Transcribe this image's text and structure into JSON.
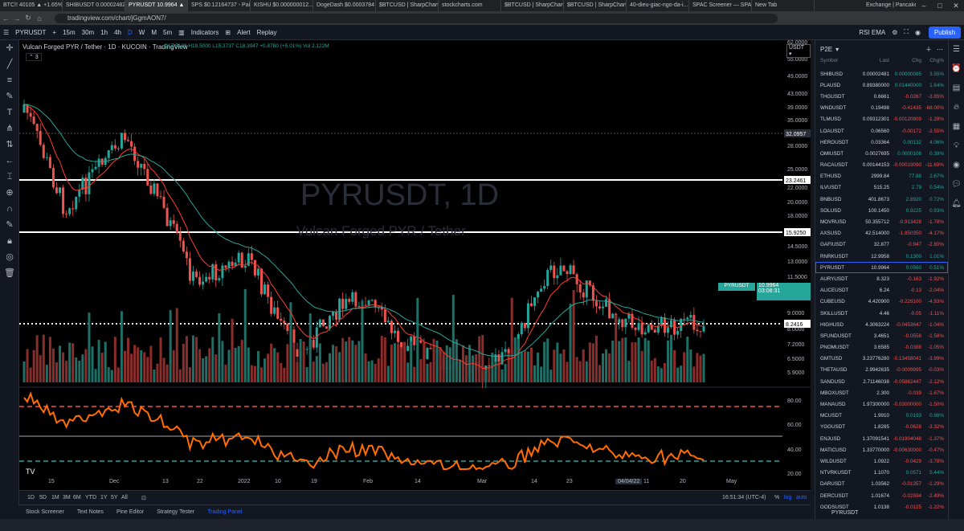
{
  "browser": {
    "tabs": [
      "BTC!! 40105 ▲ +1.65%",
      "SHIBUSDT 0.00002482 ...",
      "PYRUSDT 10.9964 ▲",
      "SPS $0.12164737 - Pair",
      "KISHU $0.000000012...",
      "DogeDash $0.0003784",
      "$BTCUSD | SharpChart",
      "stockcharts.com",
      "$BTCUSD | SharpChart",
      "$BTCUSD | SharpChart",
      "40-dieu-giac-ngo-da-i...",
      "SPAC Screener — SPAC",
      "New Tab",
      "Exchange | PancakeSw..."
    ],
    "url": "tradingview.com/chart/jGgmAON7/"
  },
  "toolbar": {
    "symbol": "PYRUSDT",
    "intervals": [
      "15m",
      "30m",
      "1h",
      "4h",
      "D",
      "W",
      "M",
      "5m"
    ],
    "indicators": "Indicators",
    "alert": "Alert",
    "replay": "Replay",
    "layout": "RSI EMA",
    "publish": "Publish"
  },
  "chart": {
    "symbol_line": "Vulcan Forged PYR / Tether · 1D · KUCOIN · TradingView",
    "ohlc": "O17.5139 H19.5000 L15.3737 C18.3947 +0.8780 (+5.01%) Vol 2.122M",
    "sub_count": "3",
    "watermark_title": "PYRUSDT, 1D",
    "watermark_sub": "Vulcan Forged PYR / Tether",
    "currency": "USDT",
    "last_price": "10.9964",
    "countdown": "03:08:31",
    "level_labels": [
      "32.0957",
      "23.2461",
      "15.9250",
      "8.2416"
    ],
    "price_ticks": [
      "62.0000",
      "55.0000",
      "49.0000",
      "43.0000",
      "39.0000",
      "35.0000",
      "31.0000",
      "28.0000",
      "25.0000",
      "22.0000",
      "20.0000",
      "18.0000",
      "16.0000",
      "14.5000",
      "13.0000",
      "11.5000",
      "10.0000",
      "9.0000",
      "8.0000",
      "7.2000",
      "6.5000",
      "5.9000"
    ],
    "rsi_ticks": [
      "80.00",
      "60.00",
      "40.00",
      "20.00"
    ],
    "dates": [
      "15",
      "Dec",
      "13",
      "22",
      "2022",
      "10",
      "19",
      "Feb",
      "14",
      "Mar",
      "14",
      "23",
      "04/04/22",
      "11",
      "20",
      "May"
    ],
    "time": "16:51:34 (UTC-4)",
    "pct": "%",
    "log": "log",
    "auto": "auto"
  },
  "timeframes": [
    "1D",
    "5D",
    "1M",
    "3M",
    "6M",
    "YTD",
    "1Y",
    "5Y",
    "All"
  ],
  "bottom_tabs": [
    "Stock Screener",
    "Text Notes",
    "Pine Editor",
    "Strategy Tester",
    "Trading Panel"
  ],
  "watchlist": {
    "title": "P2E",
    "columns": [
      "Symbol",
      "Last",
      "Chg",
      "Chg%"
    ],
    "rows": [
      {
        "s": "SHIBUSD",
        "l": "0.00002481",
        "c": "0.00000085",
        "p": "3.55%",
        "d": "pos"
      },
      {
        "s": "PLAUSD",
        "l": "0.89380000",
        "c": "0.01440000",
        "p": "1.64%",
        "d": "pos"
      },
      {
        "s": "THGUSDT",
        "l": "0.6661",
        "c": "-0.0267",
        "p": "-3.85%",
        "d": "neg"
      },
      {
        "s": "WNDUSDT",
        "l": "0.19498",
        "c": "-0.41435",
        "p": "-68.00%",
        "d": "neg"
      },
      {
        "s": "TLMUSD",
        "l": "0.09312301",
        "c": "-0.00120809",
        "p": "-1.28%",
        "d": "neg"
      },
      {
        "s": "LOAUSDT",
        "l": "0.06560",
        "c": "-0.00172",
        "p": "-2.55%",
        "d": "neg"
      },
      {
        "s": "HEROUSDT",
        "l": "0.03364",
        "c": "0.00132",
        "p": "4.06%",
        "d": "pos"
      },
      {
        "s": "OMIUSDT",
        "l": "0.0027695",
        "c": "0.0000106",
        "p": "0.38%",
        "d": "pos"
      },
      {
        "s": "RACAUSDT",
        "l": "0.00144153",
        "c": "-0.00019090",
        "p": "-11.69%",
        "d": "neg"
      },
      {
        "s": "ETHUSD",
        "l": "2999.84",
        "c": "77.88",
        "p": "2.67%",
        "d": "pos"
      },
      {
        "s": "ILVUSDT",
        "l": "515.25",
        "c": "2.79",
        "p": "0.54%",
        "d": "pos"
      },
      {
        "s": "BNBUSD",
        "l": "401.8673",
        "c": "2.8920",
        "p": "0.72%",
        "d": "pos"
      },
      {
        "s": "SOLUSD",
        "l": "100.1450",
        "c": "0.9225",
        "p": "0.93%",
        "d": "pos"
      },
      {
        "s": "MOVRUSD",
        "l": "50.355712",
        "c": "-0.913428",
        "p": "-1.78%",
        "d": "neg"
      },
      {
        "s": "AXSUSD",
        "l": "42.514000",
        "c": "-1.850350",
        "p": "-4.17%",
        "d": "neg"
      },
      {
        "s": "GAFIUSDT",
        "l": "32.877",
        "c": "-0.947",
        "p": "-2.80%",
        "d": "neg"
      },
      {
        "s": "RNRKUSDT",
        "l": "12.9958",
        "c": "0.1300",
        "p": "1.01%",
        "d": "pos"
      },
      {
        "s": "PYRUSDT",
        "l": "10.9964",
        "c": "0.0560",
        "p": "0.51%",
        "d": "pos"
      },
      {
        "s": "AURYUSDT",
        "l": "8.323",
        "c": "-0.163",
        "p": "-1.92%",
        "d": "neg"
      },
      {
        "s": "ALICEUSDT",
        "l": "6.24",
        "c": "-0.13",
        "p": "-2.04%",
        "d": "neg"
      },
      {
        "s": "CUBEUSD",
        "l": "4.420900",
        "c": "-0.229100",
        "p": "-4.93%",
        "d": "neg"
      },
      {
        "s": "SKILLUSDT",
        "l": "4.46",
        "c": "-0.05",
        "p": "-1.11%",
        "d": "neg"
      },
      {
        "s": "HIGHUSD",
        "l": "4.3063224",
        "c": "-0.0453647",
        "p": "-1.04%",
        "d": "neg"
      },
      {
        "s": "SFUNDUSDT",
        "l": "3.4651",
        "c": "-0.0556",
        "p": "-1.58%",
        "d": "neg"
      },
      {
        "s": "PNOMUSDT",
        "l": "3.6585",
        "c": "-0.0388",
        "p": "-1.05%",
        "d": "neg"
      },
      {
        "s": "GMTUSD",
        "l": "3.23776280",
        "c": "-0.13458041",
        "p": "-3.99%",
        "d": "neg"
      },
      {
        "s": "THETAUSD",
        "l": "2.9942635",
        "c": "-0.0009995",
        "p": "-0.03%",
        "d": "neg"
      },
      {
        "s": "SANDUSD",
        "l": "2.71146038",
        "c": "-0.05862447",
        "p": "-2.12%",
        "d": "neg"
      },
      {
        "s": "MBOXUSDT",
        "l": "2.300",
        "c": "-0.039",
        "p": "-1.67%",
        "d": "neg"
      },
      {
        "s": "MANAUSD",
        "l": "1.97300000",
        "c": "-0.03000000",
        "p": "-1.50%",
        "d": "neg"
      },
      {
        "s": "MCUSDT",
        "l": "1.9910",
        "c": "0.0193",
        "p": "0.98%",
        "d": "pos"
      },
      {
        "s": "YGGUSDT",
        "l": "1.8285",
        "c": "-0.0628",
        "p": "-3.32%",
        "d": "neg"
      },
      {
        "s": "ENJUSD",
        "l": "1.37091541",
        "c": "-0.01904048",
        "p": "-1.37%",
        "d": "neg"
      },
      {
        "s": "MATICUSD",
        "l": "1.33770000",
        "c": "-0.00630000",
        "p": "-0.47%",
        "d": "neg"
      },
      {
        "s": "WILDUSDT",
        "l": "1.0922",
        "c": "-0.0429",
        "p": "-3.78%",
        "d": "neg"
      },
      {
        "s": "NTVRKUSDT",
        "l": "1.1070",
        "c": "0.0571",
        "p": "5.44%",
        "d": "pos"
      },
      {
        "s": "DARUSDT",
        "l": "1.03562",
        "c": "-0.01357",
        "p": "-1.29%",
        "d": "neg"
      },
      {
        "s": "DERCUSDT",
        "l": "1.01674",
        "c": "-0.02594",
        "p": "-2.49%",
        "d": "neg"
      },
      {
        "s": "GODSUSDT",
        "l": "1.0138",
        "c": "-0.0125",
        "p": "-1.22%",
        "d": "neg"
      }
    ],
    "footer": "PYRUSDT"
  },
  "colors": {
    "up": "#26a69a",
    "down": "#ef5350",
    "ema_fast": "#ff3b30",
    "ema_slow": "#26a69a",
    "rsi": "#ff6d00",
    "accent": "#2962ff"
  }
}
